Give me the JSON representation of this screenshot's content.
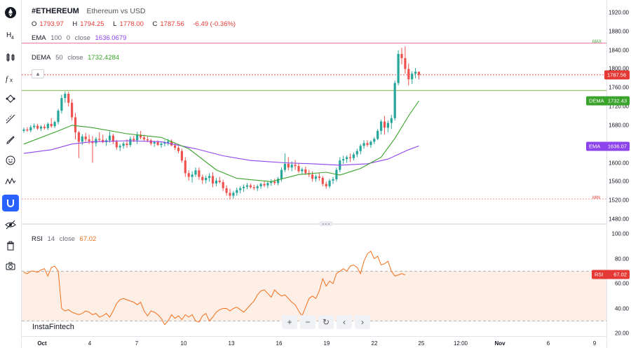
{
  "symbol": "#ETHEREUM",
  "description": "Ethereum vs USD",
  "ohlc": {
    "o_label": "O",
    "open": "1793.97",
    "h_label": "H",
    "high": "1794.25",
    "l_label": "L",
    "low": "1778.00",
    "c_label": "C",
    "close": "1787.56",
    "change": "-6.49 (-0.36%)"
  },
  "indicators": {
    "ema": {
      "name": "EMA",
      "p1": "100",
      "p2": "0",
      "source": "close",
      "value": "1636.0679",
      "tag_label": "EMA",
      "tag_value": "1636.07"
    },
    "dema": {
      "name": "DEMA",
      "p1": "50",
      "source": "close",
      "value": "1732.4284",
      "tag_label": "DEMA",
      "tag_value": "1732.43"
    },
    "rsi": {
      "name": "RSI",
      "p1": "14",
      "source": "close",
      "value": "67.02",
      "tag_label": "RSI",
      "tag_value": "67.02"
    }
  },
  "price_axis": [
    "1920.00",
    "1880.00",
    "1840.00",
    "1800.00",
    "1760.00",
    "1720.00",
    "1680.00",
    "1640.00",
    "1600.00",
    "1560.00",
    "1520.00",
    "1480.00"
  ],
  "rsi_axis": [
    "100.00",
    "80.00",
    "60.00",
    "40.00",
    "20.00"
  ],
  "time_axis": [
    "Oct",
    "4",
    "7",
    "10",
    "13",
    "16",
    "19",
    "22",
    "25",
    "12:00",
    "Nov",
    "6",
    "9"
  ],
  "price_tag": "1787.56",
  "max_label": "MAX",
  "min_label": "MIN",
  "brand": "InstaFintech",
  "colors": {
    "up": "#26a69a",
    "down": "#ef5350",
    "ema": "#8e44ec",
    "dema": "#3aa32b",
    "rsi": "#f2701c",
    "accent": "#2962ff"
  },
  "toolbar_icons": [
    "logo-icon",
    "h4-timeframe-icon",
    "candles-icon",
    "fx-icon",
    "nodes-icon",
    "trend-line-icon",
    "brush-icon",
    "emoji-icon",
    "wave-icon",
    "magnet-icon",
    "eye-icon",
    "trash-icon",
    "camera-icon"
  ],
  "bottom_buttons": [
    "zoom-in-icon",
    "zoom-out-icon",
    "reset-icon",
    "scroll-left-icon",
    "scroll-right-icon"
  ],
  "chart_data": {
    "type": "candlestick",
    "title": "#ETHEREUM",
    "ylim": [
      1480,
      1930
    ],
    "candles": [
      [
        1668,
        1675,
        1664,
        1671
      ],
      [
        1671,
        1676,
        1666,
        1669
      ],
      [
        1669,
        1680,
        1665,
        1676
      ],
      [
        1676,
        1684,
        1672,
        1679
      ],
      [
        1679,
        1683,
        1670,
        1673
      ],
      [
        1673,
        1680,
        1668,
        1677
      ],
      [
        1677,
        1682,
        1671,
        1674
      ],
      [
        1674,
        1686,
        1670,
        1683
      ],
      [
        1683,
        1695,
        1675,
        1678
      ],
      [
        1678,
        1690,
        1674,
        1687
      ],
      [
        1687,
        1715,
        1682,
        1711
      ],
      [
        1711,
        1745,
        1705,
        1738
      ],
      [
        1738,
        1752,
        1728,
        1747
      ],
      [
        1747,
        1751,
        1720,
        1728
      ],
      [
        1728,
        1736,
        1690,
        1697
      ],
      [
        1697,
        1706,
        1650,
        1665
      ],
      [
        1665,
        1668,
        1610,
        1645
      ],
      [
        1645,
        1661,
        1638,
        1656
      ],
      [
        1656,
        1664,
        1645,
        1650
      ],
      [
        1650,
        1660,
        1640,
        1646
      ],
      [
        1646,
        1657,
        1600,
        1642
      ],
      [
        1642,
        1655,
        1635,
        1651
      ],
      [
        1651,
        1665,
        1645,
        1649
      ],
      [
        1649,
        1660,
        1642,
        1644
      ],
      [
        1644,
        1652,
        1636,
        1648
      ],
      [
        1648,
        1667,
        1643,
        1658
      ],
      [
        1658,
        1662,
        1640,
        1645
      ],
      [
        1645,
        1649,
        1628,
        1633
      ],
      [
        1633,
        1640,
        1625,
        1636
      ],
      [
        1636,
        1645,
        1630,
        1641
      ],
      [
        1641,
        1650,
        1632,
        1638
      ],
      [
        1638,
        1656,
        1634,
        1651
      ],
      [
        1651,
        1657,
        1644,
        1648
      ],
      [
        1648,
        1666,
        1640,
        1660
      ],
      [
        1660,
        1668,
        1650,
        1654
      ],
      [
        1654,
        1660,
        1645,
        1650
      ],
      [
        1650,
        1656,
        1644,
        1648
      ],
      [
        1648,
        1651,
        1637,
        1641
      ],
      [
        1641,
        1647,
        1634,
        1644
      ],
      [
        1644,
        1648,
        1636,
        1638
      ],
      [
        1638,
        1644,
        1632,
        1641
      ],
      [
        1641,
        1648,
        1635,
        1643
      ],
      [
        1643,
        1651,
        1637,
        1646
      ],
      [
        1646,
        1650,
        1635,
        1637
      ],
      [
        1637,
        1642,
        1627,
        1632
      ],
      [
        1632,
        1636,
        1620,
        1625
      ],
      [
        1625,
        1630,
        1600,
        1605
      ],
      [
        1605,
        1612,
        1570,
        1578
      ],
      [
        1578,
        1584,
        1562,
        1570
      ],
      [
        1570,
        1582,
        1558,
        1575
      ],
      [
        1575,
        1590,
        1570,
        1584
      ],
      [
        1584,
        1590,
        1564,
        1570
      ],
      [
        1570,
        1575,
        1555,
        1563
      ],
      [
        1563,
        1573,
        1556,
        1568
      ],
      [
        1568,
        1578,
        1560,
        1572
      ],
      [
        1572,
        1580,
        1548,
        1556
      ],
      [
        1556,
        1568,
        1550,
        1562
      ],
      [
        1562,
        1570,
        1556,
        1559
      ],
      [
        1559,
        1564,
        1540,
        1546
      ],
      [
        1546,
        1552,
        1530,
        1536
      ],
      [
        1536,
        1545,
        1522,
        1530
      ],
      [
        1530,
        1540,
        1524,
        1536
      ],
      [
        1536,
        1547,
        1530,
        1542
      ],
      [
        1542,
        1550,
        1535,
        1546
      ],
      [
        1546,
        1554,
        1538,
        1549
      ],
      [
        1549,
        1557,
        1544,
        1552
      ],
      [
        1552,
        1556,
        1545,
        1548
      ],
      [
        1548,
        1553,
        1542,
        1546
      ],
      [
        1546,
        1554,
        1540,
        1550
      ],
      [
        1550,
        1558,
        1545,
        1555
      ],
      [
        1555,
        1560,
        1548,
        1552
      ],
      [
        1552,
        1560,
        1546,
        1557
      ],
      [
        1557,
        1565,
        1551,
        1560
      ],
      [
        1560,
        1566,
        1553,
        1557
      ],
      [
        1557,
        1570,
        1552,
        1566
      ],
      [
        1566,
        1590,
        1560,
        1585
      ],
      [
        1585,
        1620,
        1580,
        1598
      ],
      [
        1598,
        1612,
        1584,
        1590
      ],
      [
        1590,
        1603,
        1582,
        1596
      ],
      [
        1596,
        1606,
        1585,
        1593
      ],
      [
        1593,
        1600,
        1578,
        1582
      ],
      [
        1582,
        1590,
        1575,
        1586
      ],
      [
        1586,
        1592,
        1574,
        1578
      ],
      [
        1578,
        1585,
        1570,
        1575
      ],
      [
        1575,
        1582,
        1560,
        1566
      ],
      [
        1566,
        1575,
        1560,
        1571
      ],
      [
        1571,
        1578,
        1562,
        1568
      ],
      [
        1568,
        1572,
        1550,
        1555
      ],
      [
        1555,
        1560,
        1545,
        1550
      ],
      [
        1550,
        1566,
        1546,
        1562
      ],
      [
        1562,
        1570,
        1555,
        1565
      ],
      [
        1565,
        1590,
        1560,
        1585
      ],
      [
        1585,
        1612,
        1580,
        1605
      ],
      [
        1605,
        1615,
        1598,
        1608
      ],
      [
        1608,
        1616,
        1600,
        1612
      ],
      [
        1612,
        1620,
        1602,
        1610
      ],
      [
        1610,
        1622,
        1605,
        1618
      ],
      [
        1618,
        1630,
        1612,
        1625
      ],
      [
        1625,
        1640,
        1618,
        1636
      ],
      [
        1636,
        1648,
        1630,
        1642
      ],
      [
        1642,
        1648,
        1634,
        1638
      ],
      [
        1638,
        1648,
        1632,
        1645
      ],
      [
        1645,
        1655,
        1640,
        1651
      ],
      [
        1651,
        1672,
        1648,
        1668
      ],
      [
        1668,
        1692,
        1660,
        1688
      ],
      [
        1688,
        1700,
        1660,
        1675
      ],
      [
        1675,
        1690,
        1665,
        1685
      ],
      [
        1685,
        1702,
        1672,
        1695
      ],
      [
        1695,
        1775,
        1690,
        1770
      ],
      [
        1770,
        1840,
        1765,
        1832
      ],
      [
        1832,
        1845,
        1810,
        1823
      ],
      [
        1823,
        1848,
        1790,
        1800
      ],
      [
        1800,
        1812,
        1765,
        1778
      ],
      [
        1778,
        1795,
        1768,
        1790
      ],
      [
        1790,
        1802,
        1780,
        1794
      ],
      [
        1793.97,
        1794.25,
        1778,
        1787.56
      ]
    ],
    "dema_points": [
      [
        0,
        1640
      ],
      [
        10,
        1668
      ],
      [
        14,
        1680
      ],
      [
        20,
        1675
      ],
      [
        30,
        1662
      ],
      [
        40,
        1654
      ],
      [
        48,
        1630
      ],
      [
        56,
        1585
      ],
      [
        62,
        1567
      ],
      [
        72,
        1560
      ],
      [
        80,
        1575
      ],
      [
        88,
        1580
      ],
      [
        92,
        1574
      ],
      [
        98,
        1588
      ],
      [
        104,
        1612
      ],
      [
        108,
        1652
      ],
      [
        112,
        1700
      ],
      [
        115,
        1732
      ]
    ],
    "ema_points": [
      [
        0,
        1620
      ],
      [
        8,
        1628
      ],
      [
        14,
        1640
      ],
      [
        20,
        1645
      ],
      [
        30,
        1647
      ],
      [
        40,
        1645
      ],
      [
        50,
        1630
      ],
      [
        58,
        1615
      ],
      [
        66,
        1605
      ],
      [
        76,
        1600
      ],
      [
        84,
        1598
      ],
      [
        92,
        1595
      ],
      [
        100,
        1598
      ],
      [
        106,
        1608
      ],
      [
        112,
        1628
      ],
      [
        115,
        1636
      ]
    ],
    "max_line": 1855,
    "min_line": 1523,
    "resistance_line": 1754,
    "rsi": {
      "ylim": [
        20,
        100
      ],
      "upper": 70,
      "lower": 30,
      "values": [
        69,
        68,
        70,
        70,
        69,
        71,
        72,
        66,
        73,
        74,
        70,
        40,
        38,
        39,
        37,
        36,
        35,
        36,
        38,
        37,
        35,
        36,
        33,
        34,
        36,
        33,
        38,
        44,
        47,
        48,
        47,
        46,
        45,
        43,
        45,
        38,
        34,
        38,
        37,
        35,
        32,
        27,
        30,
        35,
        32,
        34,
        31,
        35,
        33,
        35,
        30,
        29,
        34,
        36,
        30,
        33,
        37,
        39,
        40,
        40,
        38,
        40,
        41,
        39,
        37,
        40,
        43,
        46,
        51,
        54,
        55,
        52,
        49,
        55,
        52,
        50,
        51,
        48,
        45,
        43,
        38,
        34,
        41,
        48,
        50,
        48,
        54,
        64,
        58,
        62,
        60,
        68,
        70,
        72,
        70,
        74,
        75,
        73,
        68,
        78,
        84,
        86,
        80,
        82,
        75,
        76,
        78,
        70,
        66,
        67,
        68,
        67.02
      ]
    }
  }
}
